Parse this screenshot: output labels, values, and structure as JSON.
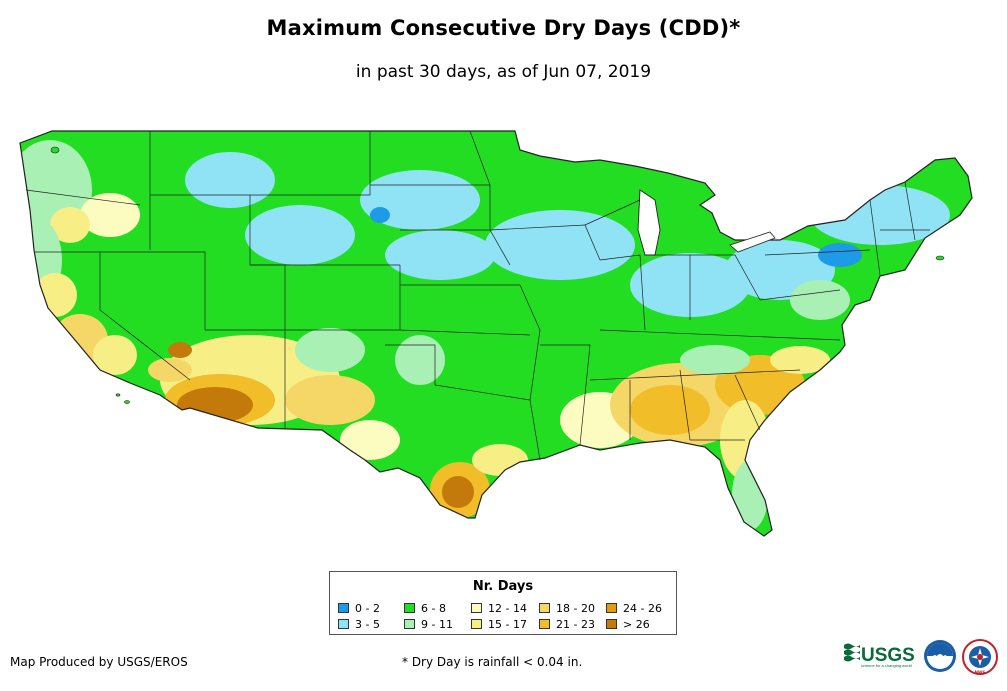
{
  "title": "Maximum Consecutive Dry Days (CDD)*",
  "subtitle": "in past 30 days, as of Jun 07, 2019",
  "legend": {
    "title": "Nr. Days",
    "items": [
      {
        "label": "0 - 2",
        "color": "#1e9be6"
      },
      {
        "label": "3 - 5",
        "color": "#8fe3f5"
      },
      {
        "label": "6 - 8",
        "color": "#22dd22"
      },
      {
        "label": "9 - 11",
        "color": "#a8f0b4"
      },
      {
        "label": "12 - 14",
        "color": "#fdfcc0"
      },
      {
        "label": "15 - 17",
        "color": "#f7ee86"
      },
      {
        "label": "18 - 20",
        "color": "#f5d768"
      },
      {
        "label": "21 - 23",
        "color": "#f1bd29"
      },
      {
        "label": "24 - 26",
        "color": "#e39c0d"
      },
      {
        "label": "> 26",
        "color": "#c47a0a"
      }
    ]
  },
  "credit": "Map Produced by USGS/EROS",
  "footnote": "* Dry Day is rainfall < 0.04 in.",
  "logos": {
    "usgs": "USGS",
    "usgs_tagline": "science for a changing world",
    "noaa": "noaa",
    "nws": "NWS"
  },
  "colors": {
    "outline": "#222222",
    "water": "#ffffff"
  }
}
